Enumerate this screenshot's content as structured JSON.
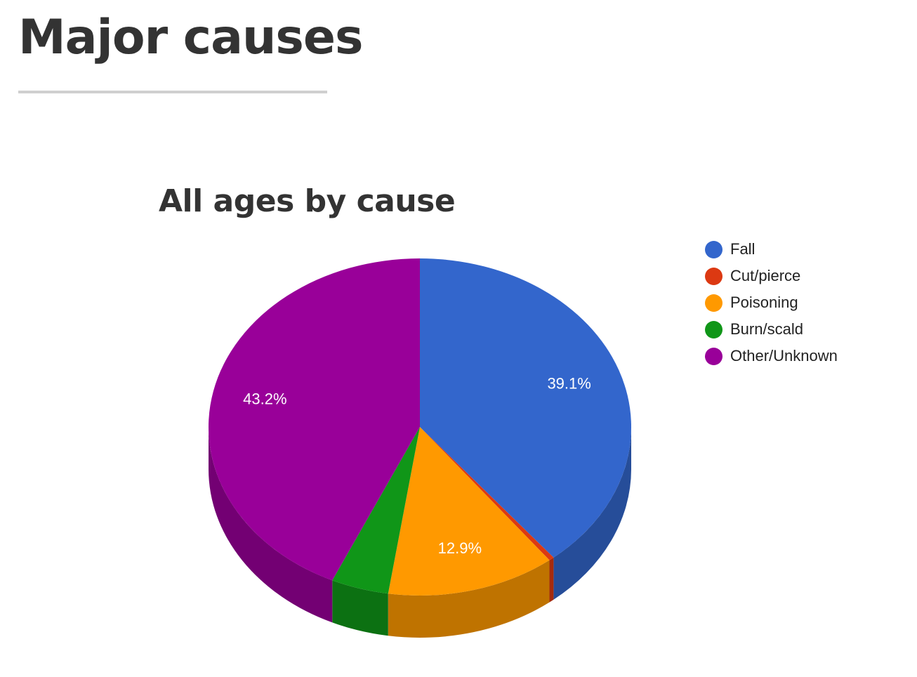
{
  "page": {
    "heading": "Major causes"
  },
  "chart_data": {
    "type": "pie",
    "three_d": true,
    "title": "All ages by cause",
    "legend_position": "right",
    "series": [
      {
        "name": "Fall",
        "value": 39.1,
        "label": "39.1%",
        "color": "#3366cc",
        "side_color": "#264d99"
      },
      {
        "name": "Cut/pierce",
        "value": 0.4,
        "label": "",
        "color": "#dc3912",
        "side_color": "#a52b0e"
      },
      {
        "name": "Poisoning",
        "value": 12.9,
        "label": "12.9%",
        "color": "#ff9900",
        "side_color": "#bf7300"
      },
      {
        "name": "Burn/scald",
        "value": 4.4,
        "label": "",
        "color": "#109618",
        "side_color": "#0c7112"
      },
      {
        "name": "Other/Unknown",
        "value": 43.2,
        "label": "43.2%",
        "color": "#990099",
        "side_color": "#730073"
      }
    ]
  }
}
